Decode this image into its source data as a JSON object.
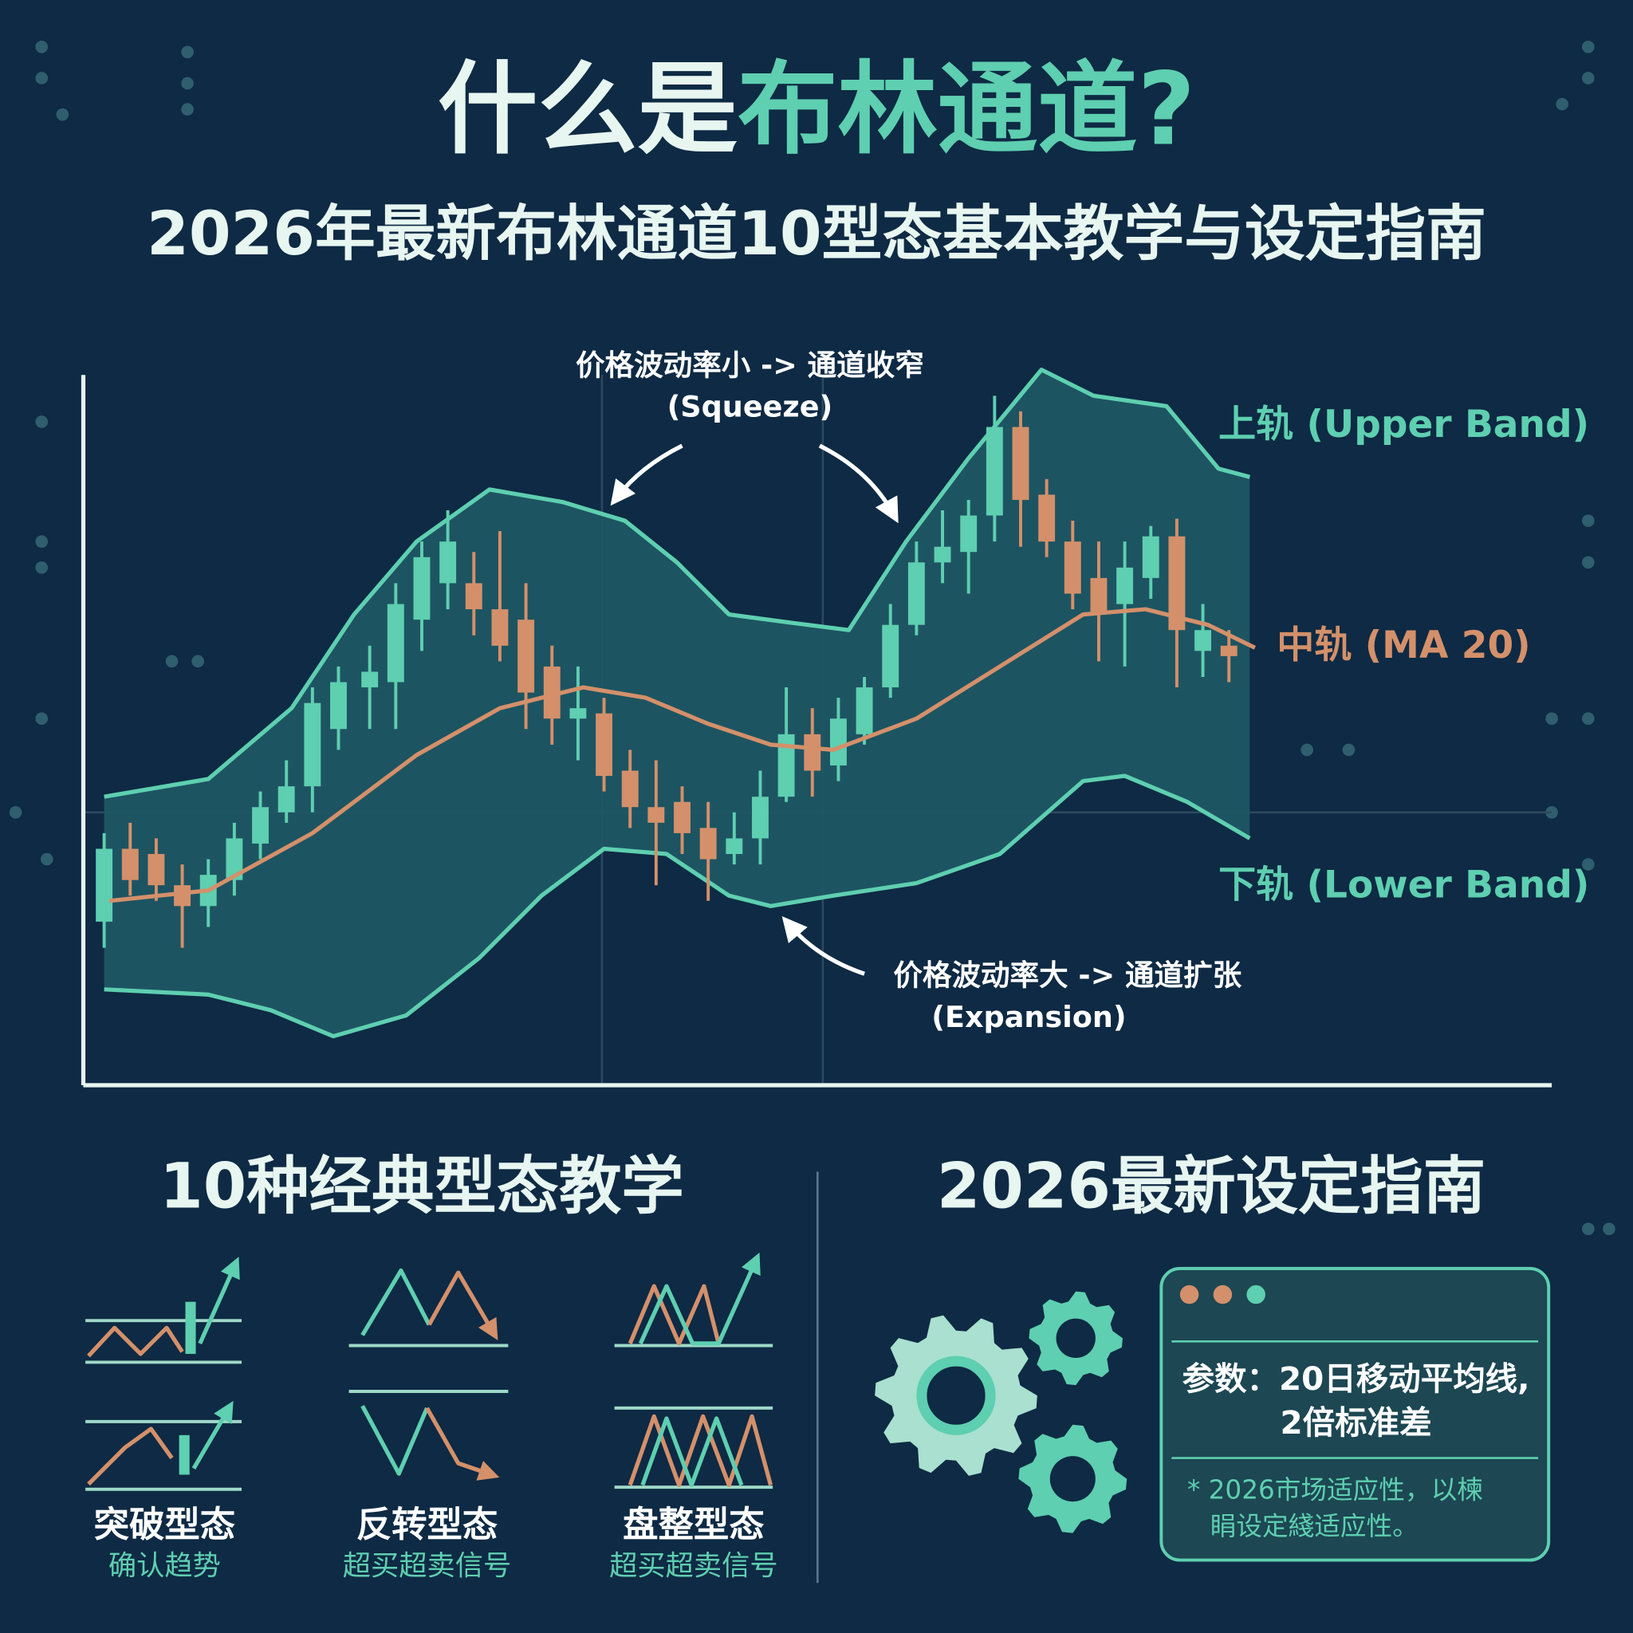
{
  "header": {
    "title_part1": "什么是",
    "title_highlight": "布林通道?",
    "subtitle": "2026年最新布林通道10型态基本教学与设定指南"
  },
  "chart": {
    "annotations": [
      {
        "text": "价格波动率小 -> 通道收窄",
        "sub": "(Squeeze)"
      },
      {
        "text": "价格波动率大 -> 通道扩张",
        "sub": "(Expansion)"
      }
    ],
    "bands": {
      "upper": "上轨 (Upper Band)",
      "middle": "中轨 (MA 20)",
      "lower": "下轨 (Lower Band)"
    }
  },
  "patterns": {
    "title": "10种经典型态教学",
    "groups": [
      {
        "name": "突破型态",
        "desc": "确认趋势"
      },
      {
        "name": "反转型态",
        "desc": "超买超卖信号"
      },
      {
        "name": "盘整型态",
        "desc": "超买超卖信号"
      }
    ]
  },
  "settings": {
    "title": "2026最新设定指南",
    "params_line1": "参数：20日移动平均线,",
    "params_line2": "2倍标准差",
    "note_line1": "* 2026市场适应性，以楝",
    "note_line2": "睊设定綫适应性。"
  }
}
